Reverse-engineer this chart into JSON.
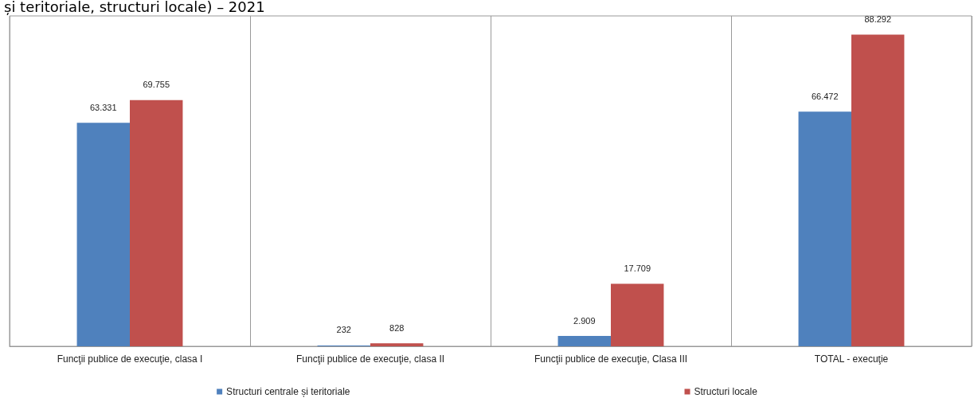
{
  "chart_data": {
    "type": "bar",
    "title": "și teritoriale, structuri locale) – 2021",
    "categories": [
      "Funcţii publice de execuţie, clasa I",
      "Funcţii publice de execuţie, clasa II",
      "Funcţii publice de execuţie, Clasa III",
      "TOTAL - execuţie"
    ],
    "series": [
      {
        "name": "Structuri centrale și teritoriale",
        "color": "#4f81bd",
        "values": [
          63331,
          232,
          2909,
          66472
        ],
        "value_labels": [
          "63.331",
          "232",
          "2.909",
          "66.472"
        ]
      },
      {
        "name": "Structuri locale",
        "color": "#c0504d",
        "values": [
          69755,
          828,
          17709,
          88292
        ],
        "value_labels": [
          "69.755",
          "828",
          "17.709",
          "88.292"
        ]
      }
    ],
    "grid": "x",
    "legend": "bottom",
    "tick_labels": "x"
  }
}
